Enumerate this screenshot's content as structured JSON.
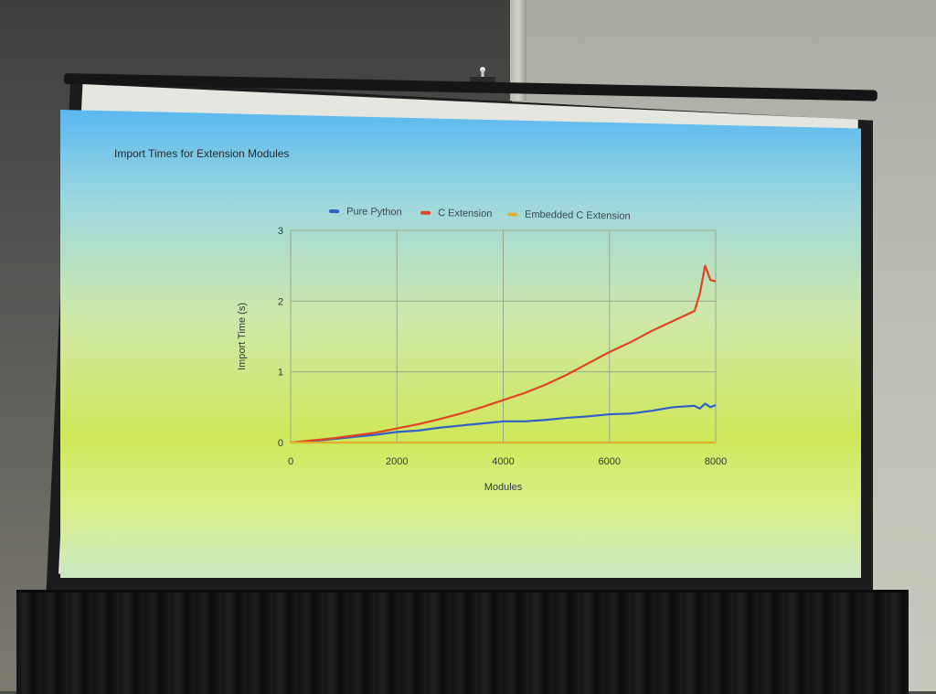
{
  "slide": {
    "title": "Import Times for Extension Modules"
  },
  "colors": {
    "pure_python": "#2f62c8",
    "c_extension": "#e04422",
    "embedded_c_extension": "#e3b02e",
    "grid": "#9aa88a",
    "text": "#2b3a40"
  },
  "icons": {
    "mount": "projector-mount-icon"
  },
  "chart_data": {
    "type": "line",
    "title": "Import Times for Extension Modules",
    "xlabel": "Modules",
    "ylabel": "Import Time (s)",
    "xlim": [
      0,
      8000
    ],
    "ylim": [
      0,
      3
    ],
    "x_ticks": [
      0,
      2000,
      4000,
      6000,
      8000
    ],
    "y_ticks": [
      0,
      1,
      2,
      3
    ],
    "grid": true,
    "legend_position": "top",
    "x": [
      0,
      400,
      800,
      1200,
      1600,
      2000,
      2400,
      2800,
      3200,
      3600,
      4000,
      4400,
      4800,
      5200,
      5600,
      6000,
      6400,
      6800,
      7200,
      7600,
      7700,
      7800,
      7900,
      8000
    ],
    "series": [
      {
        "name": "Pure Python",
        "values": [
          0,
          0.02,
          0.05,
          0.08,
          0.11,
          0.15,
          0.17,
          0.21,
          0.24,
          0.27,
          0.3,
          0.3,
          0.32,
          0.35,
          0.37,
          0.4,
          0.41,
          0.45,
          0.5,
          0.52,
          0.48,
          0.55,
          0.5,
          0.53
        ]
      },
      {
        "name": "C Extension",
        "values": [
          0,
          0.03,
          0.06,
          0.1,
          0.14,
          0.2,
          0.26,
          0.33,
          0.41,
          0.5,
          0.6,
          0.7,
          0.82,
          0.96,
          1.12,
          1.28,
          1.42,
          1.58,
          1.72,
          1.86,
          2.1,
          2.5,
          2.3,
          2.28
        ]
      },
      {
        "name": "Embedded C Extension",
        "values": [
          0,
          0,
          0,
          0,
          0,
          0,
          0,
          0,
          0,
          0,
          0,
          0,
          0,
          0,
          0,
          0,
          0,
          0,
          0,
          0,
          0,
          0,
          0,
          0
        ]
      }
    ]
  }
}
